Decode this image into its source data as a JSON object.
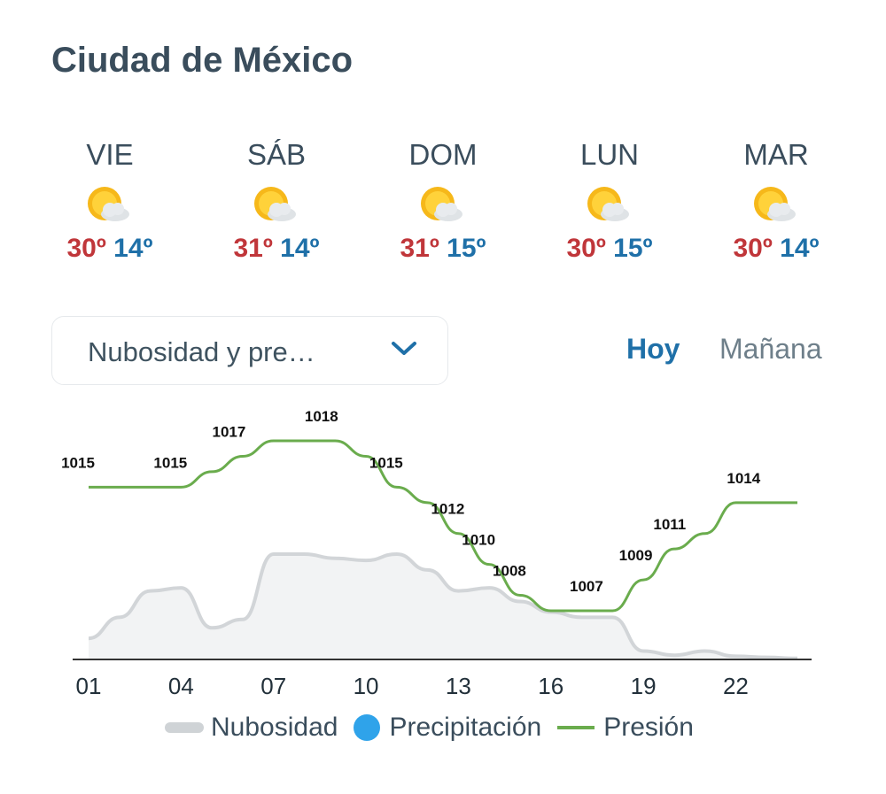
{
  "title": "Ciudad de México",
  "forecast": [
    {
      "day": "VIE",
      "max": "30º",
      "min": "14º",
      "icon": "partly-cloudy-sun-icon"
    },
    {
      "day": "SÁB",
      "max": "31º",
      "min": "14º",
      "icon": "partly-cloudy-sun-icon"
    },
    {
      "day": "DOM",
      "max": "31º",
      "min": "15º",
      "icon": "partly-cloudy-sun-icon"
    },
    {
      "day": "LUN",
      "max": "30º",
      "min": "15º",
      "icon": "partly-cloudy-sun-icon"
    },
    {
      "day": "MAR",
      "max": "30º",
      "min": "14º",
      "icon": "partly-cloudy-sun-icon"
    }
  ],
  "selector": {
    "label": "Nubosidad y pre…"
  },
  "tabs": {
    "today": "Hoy",
    "tomorrow": "Mañana"
  },
  "legend": {
    "cloud": "Nubosidad",
    "precip": "Precipitación",
    "pressure": "Presión"
  },
  "colors": {
    "max": "#c0363a",
    "min": "#1f70a8",
    "pressure": "#6aac4d",
    "cloud_fill": "#f2f3f4",
    "cloud_line": "#d2d5d8",
    "precip": "#2fa3ea"
  },
  "chart_data": {
    "type": "area",
    "x_ticks": [
      "01",
      "04",
      "07",
      "10",
      "13",
      "16",
      "19",
      "22"
    ],
    "x": [
      1,
      2,
      3,
      4,
      5,
      6,
      7,
      8,
      9,
      10,
      11,
      12,
      13,
      14,
      15,
      16,
      17,
      18,
      19,
      20,
      21,
      22,
      23,
      24
    ],
    "series": [
      {
        "name": "Presión",
        "type": "line",
        "values": [
          1015,
          1015,
          1015,
          1015,
          1016,
          1017,
          1018,
          1018,
          1018,
          1017,
          1015,
          1014,
          1012,
          1010,
          1008,
          1007,
          1007,
          1007,
          1009,
          1011,
          1012,
          1014,
          1014,
          1014
        ]
      },
      {
        "name": "Nubosidad",
        "type": "area",
        "values": [
          20,
          40,
          65,
          68,
          30,
          38,
          100,
          100,
          96,
          94,
          100,
          85,
          65,
          68,
          55,
          45,
          40,
          40,
          8,
          4,
          8,
          3,
          2,
          1
        ]
      }
    ],
    "pressure_labels": [
      {
        "x": 1,
        "text": "1015"
      },
      {
        "x": 4,
        "text": "1015"
      },
      {
        "x": 5.9,
        "text": "1017"
      },
      {
        "x": 8.9,
        "text": "1018"
      },
      {
        "x": 11,
        "text": "1015"
      },
      {
        "x": 13,
        "text": "1012"
      },
      {
        "x": 14,
        "text": "1010"
      },
      {
        "x": 15,
        "text": "1008"
      },
      {
        "x": 17.5,
        "text": "1007"
      },
      {
        "x": 19.1,
        "text": "1009"
      },
      {
        "x": 20.2,
        "text": "1011"
      },
      {
        "x": 22.6,
        "text": "1014"
      }
    ]
  }
}
